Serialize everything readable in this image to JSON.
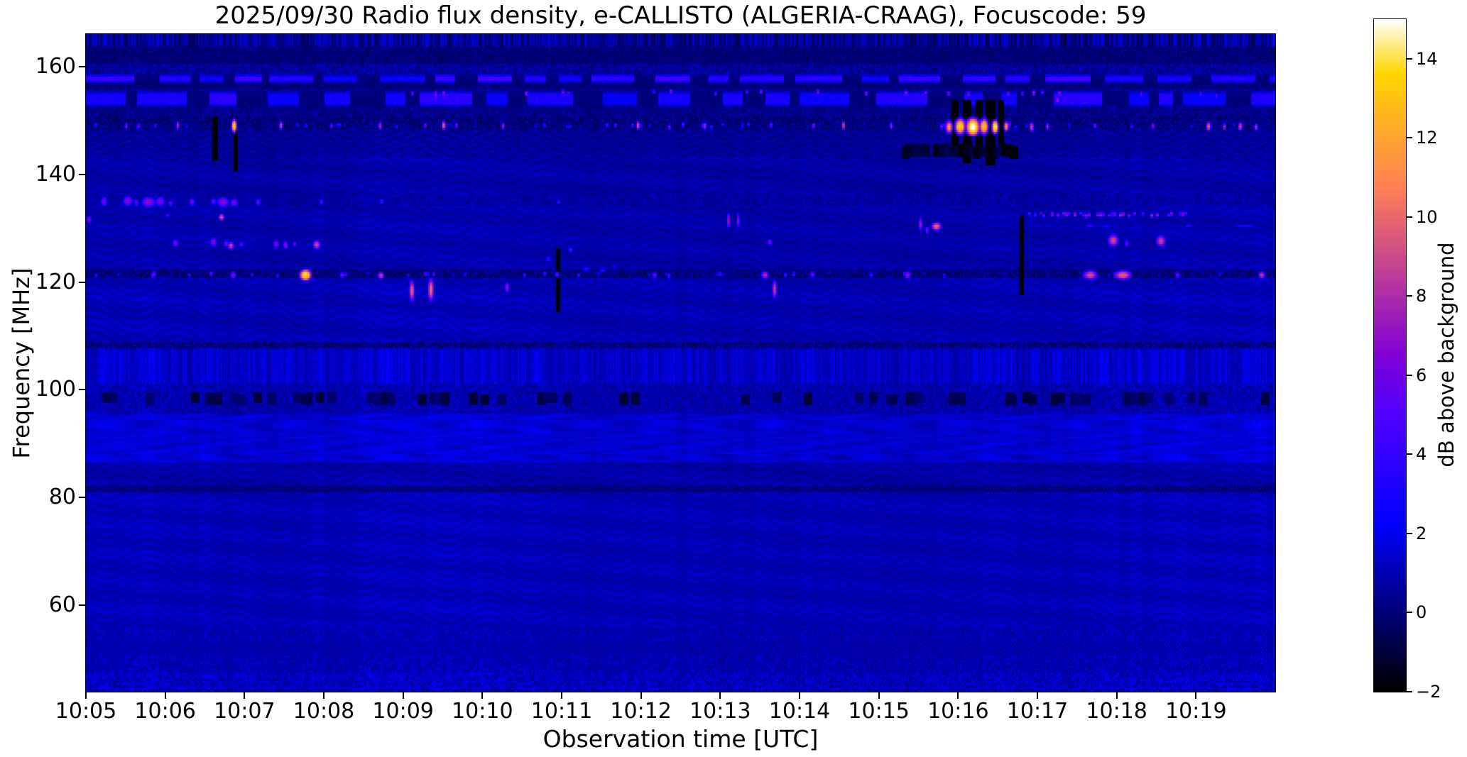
{
  "chart_data": {
    "type": "heatmap",
    "title": "2025/09/30  Radio flux density, e-CALLISTO (ALGERIA-CRAAG), Focuscode: 59",
    "xlabel": "Observation time [UTC]",
    "ylabel": "Frequency [MHz]",
    "colorbar_label": "dB above background",
    "colormap": "gnuplot2",
    "clim": [
      -2,
      15
    ],
    "background_color": "#ffffff",
    "text_color": "#000000",
    "grid": false,
    "x_start": "10:05",
    "x_range_minutes": [
      0,
      15
    ],
    "freq_range": [
      44,
      166
    ],
    "x_ticks": [
      "10:05",
      "10:06",
      "10:07",
      "10:08",
      "10:09",
      "10:10",
      "10:11",
      "10:12",
      "10:13",
      "10:14",
      "10:15",
      "10:16",
      "10:17",
      "10:18",
      "10:19"
    ],
    "y_ticks": [
      160,
      140,
      120,
      100,
      80,
      60
    ],
    "colorbar_ticks": [
      14,
      12,
      10,
      8,
      6,
      4,
      2,
      0,
      -2
    ],
    "noise_seed": 7,
    "background_level_db": 0.9,
    "band_format": "[f_lo_MHz, f_hi_MHz, base_dB, noise_amp_dB, texture]",
    "bands": [
      [
        163.5,
        166.0,
        0.5,
        1.4,
        "stripes"
      ],
      [
        160.5,
        163.5,
        0.0,
        0.5,
        "speckle"
      ],
      [
        158.6,
        160.5,
        0.6,
        0.8,
        "speckle"
      ],
      [
        155.8,
        157.2,
        0.05,
        0.5,
        "speckle"
      ],
      [
        150.5,
        152.6,
        0.3,
        0.7,
        "speckle"
      ],
      [
        148.4,
        150.5,
        0.15,
        0.9,
        "speckle"
      ],
      [
        143.0,
        148.4,
        0.55,
        0.5,
        "herringbone"
      ],
      [
        136.0,
        143.0,
        0.75,
        0.45,
        "wave"
      ],
      [
        134.2,
        136.0,
        0.7,
        0.6,
        "speckle"
      ],
      [
        122.4,
        134.2,
        0.85,
        0.45,
        "wave"
      ],
      [
        120.9,
        122.4,
        0.15,
        0.9,
        "speckle"
      ],
      [
        108.9,
        120.9,
        1.0,
        0.5,
        "wave"
      ],
      [
        107.9,
        108.9,
        0.2,
        0.9,
        "speckle"
      ],
      [
        101.0,
        107.9,
        1.45,
        0.8,
        "stripes"
      ],
      [
        95.5,
        101.0,
        0.9,
        0.7,
        "speckle"
      ],
      [
        86.5,
        95.5,
        1.55,
        0.7,
        "mottle"
      ],
      [
        82.2,
        86.5,
        0.8,
        0.5,
        "wave"
      ],
      [
        80.8,
        82.2,
        0.1,
        1.0,
        "checker"
      ],
      [
        56.0,
        80.8,
        1.05,
        0.45,
        "wave"
      ],
      [
        53.5,
        56.0,
        1.0,
        0.6,
        "speckle"
      ],
      [
        50.5,
        53.5,
        0.9,
        0.9,
        "checker"
      ],
      [
        47.5,
        50.5,
        1.0,
        0.7,
        "speckle"
      ],
      [
        44.0,
        47.5,
        1.2,
        0.9,
        "speckle"
      ]
    ],
    "dashed_line_format": "[f_MHz, df_MHz, v_on_dB, v_off_dB, seg_min, seg_max, gap_min, gap_max, seed]",
    "dashed_lines": [
      [
        157.9,
        1.3,
        3.6,
        0.05,
        14,
        34,
        5,
        18,
        11
      ],
      [
        154.2,
        2.6,
        3.0,
        0.05,
        10,
        40,
        6,
        26,
        23
      ]
    ],
    "dot_row_format": "[f_MHz, df_MHz, t0_min, t1_min, rate, v_min_dB, v_max_dB, seed]",
    "dot_rows": [
      [
        149.25,
        0.9,
        0.0,
        15.0,
        0.1,
        2.5,
        6.5,
        5
      ],
      [
        121.6,
        0.8,
        0.0,
        15.0,
        0.08,
        2.5,
        5.5,
        9
      ],
      [
        132.7,
        0.7,
        11.85,
        13.95,
        0.45,
        4.5,
        8.0,
        13
      ],
      [
        155.3,
        0.8,
        3.5,
        12.5,
        0.06,
        4.5,
        7.5,
        21
      ],
      [
        98.5,
        0.6,
        0.0,
        15.0,
        0.2,
        -1.2,
        0.3,
        25
      ],
      [
        144.5,
        0.7,
        10.3,
        11.7,
        0.5,
        -2.0,
        -0.5,
        17
      ]
    ],
    "burst_format": "[t_min_after_10:05, f_MHz, dt_min, df_MHz, peak_dB]",
    "bursts": [
      [
        0.22,
        135.1,
        0.07,
        1.4,
        6.0
      ],
      [
        0.52,
        135.2,
        0.1,
        1.5,
        6.5
      ],
      [
        0.63,
        134.9,
        0.05,
        1.2,
        5.5
      ],
      [
        0.78,
        135.0,
        0.14,
        1.6,
        6.8
      ],
      [
        0.93,
        135.1,
        0.1,
        1.4,
        6.2
      ],
      [
        1.06,
        134.8,
        0.05,
        1.0,
        5.2
      ],
      [
        1.33,
        135.0,
        0.06,
        1.2,
        5.8
      ],
      [
        1.6,
        135.1,
        0.06,
        1.1,
        5.4
      ],
      [
        1.72,
        135.0,
        0.12,
        1.5,
        6.6
      ],
      [
        1.86,
        134.9,
        0.08,
        1.3,
        6.0
      ],
      [
        2.16,
        135.0,
        0.05,
        1.1,
        5.6
      ],
      [
        2.96,
        135.0,
        0.05,
        1.0,
        4.8
      ],
      [
        3.72,
        135.1,
        0.05,
        1.0,
        4.5
      ],
      [
        5.95,
        135.0,
        0.04,
        0.9,
        4.2
      ],
      [
        0.03,
        131.8,
        0.05,
        1.0,
        6.5
      ],
      [
        1.02,
        132.5,
        0.04,
        0.8,
        5.0
      ],
      [
        1.7,
        132.2,
        0.05,
        0.9,
        9.5
      ],
      [
        8.1,
        131.6,
        0.03,
        2.2,
        7.5
      ],
      [
        8.22,
        131.6,
        0.03,
        2.2,
        7.0
      ],
      [
        10.52,
        130.9,
        0.04,
        1.8,
        7.2
      ],
      [
        10.6,
        129.8,
        0.04,
        1.2,
        6.0
      ],
      [
        10.72,
        130.5,
        0.09,
        1.1,
        9.8
      ],
      [
        12.65,
        130.6,
        0.12,
        0.9,
        3.4
      ],
      [
        12.86,
        130.6,
        0.08,
        0.9,
        3.2
      ],
      [
        13.9,
        130.6,
        0.1,
        0.9,
        3.3
      ],
      [
        14.6,
        130.6,
        0.28,
        0.8,
        3.0
      ],
      [
        1.12,
        127.4,
        0.06,
        1.2,
        6.0
      ],
      [
        1.6,
        127.6,
        0.07,
        1.3,
        6.5
      ],
      [
        1.76,
        127.3,
        0.06,
        1.1,
        5.5
      ],
      [
        1.82,
        126.9,
        0.06,
        1.1,
        8.5
      ],
      [
        1.95,
        127.1,
        0.05,
        1.0,
        5.0
      ],
      [
        2.39,
        127.2,
        0.06,
        1.2,
        6.5
      ],
      [
        2.51,
        127.0,
        0.05,
        1.0,
        7.0
      ],
      [
        2.62,
        127.3,
        0.04,
        0.9,
        5.5
      ],
      [
        2.9,
        127.1,
        0.07,
        1.2,
        8.8
      ],
      [
        8.62,
        127.6,
        0.05,
        1.0,
        6.2
      ],
      [
        12.95,
        127.9,
        0.1,
        1.6,
        8.8
      ],
      [
        13.12,
        127.4,
        0.04,
        1.1,
        6.0
      ],
      [
        13.55,
        127.8,
        0.09,
        1.5,
        8.5
      ],
      [
        5.82,
        124.5,
        0.05,
        0.8,
        4.5
      ],
      [
        6.1,
        126.2,
        0.05,
        0.9,
        5.0
      ],
      [
        6.3,
        122.6,
        0.1,
        0.9,
        3.5
      ],
      [
        6.5,
        122.4,
        0.08,
        0.9,
        3.4
      ],
      [
        6.65,
        123.0,
        0.06,
        0.8,
        3.2
      ],
      [
        0.85,
        121.6,
        0.05,
        0.9,
        6.0
      ],
      [
        1.57,
        121.8,
        0.04,
        0.8,
        5.5
      ],
      [
        1.85,
        121.5,
        0.06,
        1.0,
        6.5
      ],
      [
        2.76,
        121.5,
        0.09,
        1.3,
        14.0
      ],
      [
        3.22,
        121.5,
        0.05,
        0.9,
        6.0
      ],
      [
        3.71,
        121.4,
        0.06,
        1.0,
        8.5
      ],
      [
        5.52,
        121.5,
        0.04,
        0.8,
        5.0
      ],
      [
        5.93,
        121.6,
        0.05,
        0.9,
        5.5
      ],
      [
        7.16,
        121.5,
        0.05,
        0.9,
        6.0
      ],
      [
        7.34,
        121.4,
        0.04,
        0.8,
        5.2
      ],
      [
        8.56,
        121.5,
        0.07,
        1.1,
        8.0
      ],
      [
        8.82,
        121.5,
        0.04,
        0.8,
        5.0
      ],
      [
        9.16,
        121.6,
        0.05,
        0.9,
        6.0
      ],
      [
        9.9,
        121.5,
        0.04,
        0.8,
        5.0
      ],
      [
        10.36,
        121.5,
        0.06,
        1.0,
        7.0
      ],
      [
        12.66,
        121.5,
        0.13,
        1.2,
        9.0
      ],
      [
        13.07,
        121.5,
        0.16,
        1.2,
        9.5
      ],
      [
        13.76,
        121.5,
        0.05,
        0.9,
        6.0
      ],
      [
        14.82,
        121.5,
        0.06,
        1.0,
        8.5
      ],
      [
        4.1,
        118.6,
        0.05,
        2.8,
        9.5
      ],
      [
        4.34,
        118.8,
        0.05,
        3.0,
        10.0
      ],
      [
        5.3,
        119.2,
        0.04,
        1.6,
        7.0
      ],
      [
        8.68,
        118.9,
        0.04,
        2.4,
        8.8
      ],
      [
        0.5,
        149.2,
        0.03,
        1.0,
        7.0
      ],
      [
        1.15,
        149.3,
        0.03,
        1.2,
        8.0
      ],
      [
        1.86,
        149.2,
        0.04,
        1.5,
        13.5
      ],
      [
        2.45,
        149.3,
        0.03,
        1.1,
        9.0
      ],
      [
        3.7,
        149.2,
        0.03,
        1.1,
        8.0
      ],
      [
        4.5,
        149.3,
        0.03,
        1.3,
        10.0
      ],
      [
        5.25,
        149.2,
        0.03,
        1.0,
        7.5
      ],
      [
        6.95,
        149.3,
        0.03,
        1.2,
        9.5
      ],
      [
        7.8,
        149.2,
        0.03,
        1.0,
        8.0
      ],
      [
        9.55,
        149.3,
        0.03,
        1.2,
        9.0
      ],
      [
        10.15,
        149.2,
        0.03,
        1.0,
        7.5
      ],
      [
        10.88,
        149.0,
        0.06,
        1.6,
        11.0
      ],
      [
        11.02,
        149.1,
        0.08,
        1.8,
        13.5
      ],
      [
        11.18,
        149.0,
        0.1,
        2.0,
        15.0
      ],
      [
        11.32,
        149.1,
        0.07,
        1.8,
        13.0
      ],
      [
        11.46,
        149.0,
        0.05,
        1.5,
        14.5
      ],
      [
        11.6,
        149.1,
        0.04,
        1.3,
        11.0
      ],
      [
        11.92,
        149.0,
        0.04,
        1.2,
        9.0
      ],
      [
        12.12,
        149.1,
        0.03,
        1.0,
        8.0
      ],
      [
        13.45,
        149.2,
        0.03,
        1.0,
        7.0
      ],
      [
        14.15,
        149.1,
        0.04,
        1.2,
        9.5
      ],
      [
        14.35,
        149.0,
        0.03,
        1.0,
        8.0
      ],
      [
        14.55,
        149.1,
        0.04,
        1.1,
        9.0
      ],
      [
        14.75,
        149.0,
        0.03,
        1.0,
        8.5
      ],
      [
        4.4,
        155.0,
        0.03,
        1.3,
        7.0
      ],
      [
        12.25,
        154.0,
        0.03,
        1.2,
        7.5
      ],
      [
        13.3,
        155.0,
        0.03,
        1.0,
        5.5
      ],
      [
        14.05,
        155.2,
        0.03,
        1.0,
        5.0
      ],
      [
        14.25,
        154.8,
        0.03,
        1.0,
        5.2
      ]
    ],
    "dropout_format": "[t_min, dt_min, f_lo_MHz, f_hi_MHz] value = -2 dB",
    "dropouts": [
      [
        10.95,
        0.05,
        144.0,
        153.5
      ],
      [
        11.1,
        0.07,
        142.5,
        153.5
      ],
      [
        11.26,
        0.05,
        144.0,
        153.5
      ],
      [
        11.4,
        0.08,
        142.0,
        153.5
      ],
      [
        11.54,
        0.04,
        144.0,
        153.5
      ],
      [
        1.62,
        0.02,
        143.0,
        150.5
      ],
      [
        1.88,
        0.02,
        141.0,
        150.5
      ],
      [
        11.8,
        0.02,
        118.0,
        132.0
      ],
      [
        5.95,
        0.015,
        115.0,
        126.0
      ]
    ]
  }
}
